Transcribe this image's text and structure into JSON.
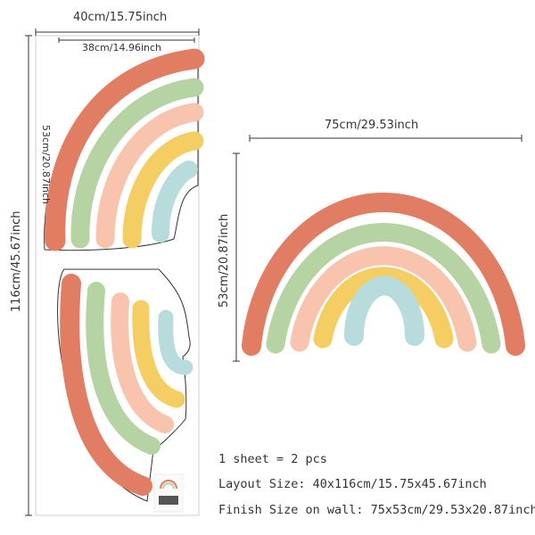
{
  "dimensions": {
    "sheet_width": "40cm/15.75inch",
    "inner_width": "38cm/14.96inch",
    "sheet_height": "116cm/45.67inch",
    "half_rainbow_height": "53cm/20.87inch",
    "finished_width": "75cm/29.53inch",
    "finished_height": "53cm/20.87inch"
  },
  "info": {
    "line1": "1 sheet = 2 pcs",
    "line2": "Layout Size: 40x116cm/15.75x45.67inch",
    "line3": "Finish Size on wall: 75x53cm/29.53x20.87inch"
  },
  "colors": {
    "red": "#e07d62",
    "green": "#b6d3a4",
    "peach": "#f8c4ad",
    "yellow": "#f4cd63",
    "blue": "#b8dcdc",
    "outline": "#333333",
    "dim_line": "#333333"
  }
}
